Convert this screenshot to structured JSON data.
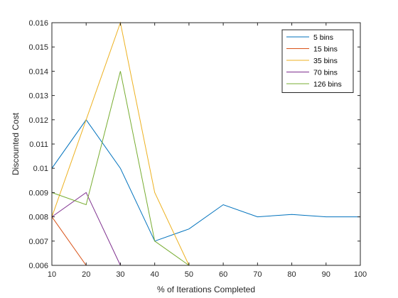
{
  "chart_data": {
    "type": "line",
    "title": "",
    "xlabel": "% of Iterations Completed",
    "ylabel": "Discounted Cost",
    "xlim": [
      10,
      100
    ],
    "ylim": [
      0.006,
      0.016
    ],
    "x_ticks": [
      10,
      20,
      30,
      40,
      50,
      60,
      70,
      80,
      90,
      100
    ],
    "y_ticks": [
      0.006,
      0.007,
      0.008,
      0.009,
      0.01,
      0.011,
      0.012,
      0.013,
      0.014,
      0.015,
      0.016
    ],
    "x_tick_labels": [
      "10",
      "20",
      "30",
      "40",
      "50",
      "60",
      "70",
      "80",
      "90",
      "100"
    ],
    "y_tick_labels": [
      "0.006",
      "0.007",
      "0.008",
      "0.009",
      "0.01",
      "0.011",
      "0.012",
      "0.013",
      "0.014",
      "0.015",
      "0.016"
    ],
    "grid": false,
    "legend_position": "top-right",
    "x": [
      10,
      20,
      30,
      40,
      50,
      60,
      70,
      80,
      90,
      100
    ],
    "series": [
      {
        "name": "5 bins",
        "color": "#0072BD",
        "values": [
          0.01,
          0.012,
          0.01,
          0.007,
          0.0075,
          0.0085,
          0.008,
          0.0081,
          0.008,
          0.008
        ]
      },
      {
        "name": "15 bins",
        "color": "#D95319",
        "values": [
          0.008,
          0.006,
          0.006,
          0.006,
          0.006,
          0.006,
          0.006,
          0.006,
          0.006,
          0.006
        ]
      },
      {
        "name": "35 bins",
        "color": "#EDB120",
        "values": [
          0.008,
          0.012,
          0.016,
          0.009,
          0.006,
          0.006,
          0.006,
          0.006,
          0.006,
          0.006
        ]
      },
      {
        "name": "70 bins",
        "color": "#7E2F8E",
        "values": [
          0.008,
          0.009,
          0.006,
          0.006,
          0.006,
          0.006,
          0.006,
          0.006,
          0.006,
          0.006
        ]
      },
      {
        "name": "126 bins",
        "color": "#77AC30",
        "values": [
          0.009,
          0.0085,
          0.014,
          0.007,
          0.006,
          0.006,
          0.006,
          0.006,
          0.006,
          0.006
        ]
      }
    ]
  }
}
